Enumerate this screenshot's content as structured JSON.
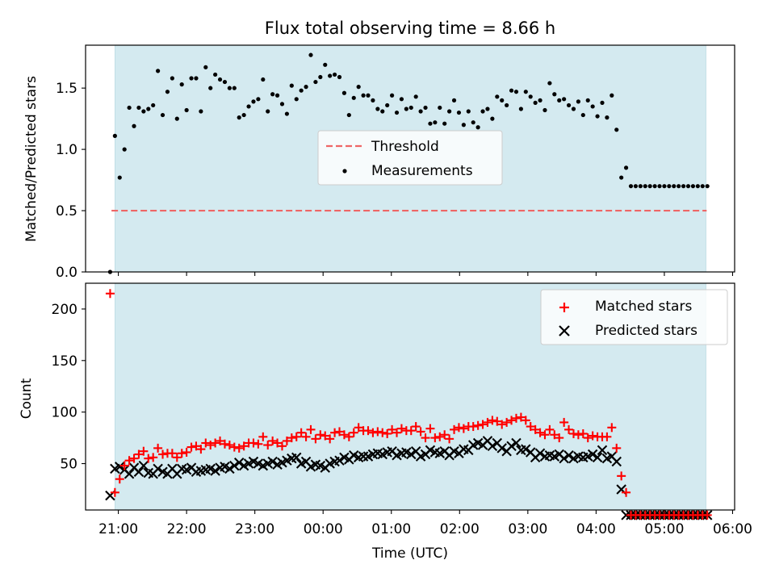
{
  "chart_data": {
    "title": "Flux total observing time = 8.66 h",
    "x_tick_labels": [
      "21:00",
      "22:00",
      "23:00",
      "00:00",
      "01:00",
      "02:00",
      "03:00",
      "04:00",
      "05:00",
      "06:00"
    ],
    "x_ticks_hours": [
      21,
      22,
      23,
      24,
      25,
      26,
      27,
      28,
      29,
      30
    ],
    "xlabel": "Time (UTC)",
    "xlim_hours": [
      20.52,
      30.03
    ],
    "observing_window_hours": [
      20.95,
      29.61
    ],
    "colors": {
      "window": "#d4eaf0",
      "threshold": "#ee6666",
      "matched": "#ff0000",
      "predicted": "#000000",
      "measurements": "#000000"
    },
    "panels": [
      {
        "type": "scatter",
        "ylabel": "Matched/Predicted stars",
        "ylim": [
          0,
          1.85
        ],
        "y_ticks": [
          0,
          0.5,
          1.0,
          1.5
        ],
        "y_tick_labels": [
          "0.0",
          "0.5",
          "1.0",
          "1.5"
        ],
        "legend_position": "center",
        "legend": {
          "threshold_label": "Threshold",
          "measurements_label": "Measurements"
        },
        "threshold": {
          "value": 0.5,
          "x_start": 20.9,
          "x_end": 29.62
        },
        "ratio_points": {
          "x": [
            20.88,
            20.95,
            21.02,
            21.09,
            21.16,
            21.23,
            21.3,
            21.37,
            21.44,
            21.51,
            21.58,
            21.65,
            21.72,
            21.79,
            21.86,
            21.93,
            22.0,
            22.07,
            22.14,
            22.21,
            22.28,
            22.35,
            22.42,
            22.49,
            22.56,
            22.63,
            22.7,
            22.77,
            22.84,
            22.91,
            22.98,
            23.05,
            23.12,
            23.19,
            23.26,
            23.33,
            23.4,
            23.47,
            23.54,
            23.61,
            23.68,
            23.75,
            23.82,
            23.89,
            23.96,
            24.03,
            24.1,
            24.17,
            24.24,
            24.31,
            24.38,
            24.45,
            24.52,
            24.59,
            24.66,
            24.73,
            24.8,
            24.87,
            24.94,
            25.01,
            25.08,
            25.15,
            25.22,
            25.29,
            25.36,
            25.43,
            25.5,
            25.57,
            25.64,
            25.71,
            25.78,
            25.85,
            25.92,
            25.99,
            26.06,
            26.13,
            26.2,
            26.27,
            26.34,
            26.41,
            26.48,
            26.55,
            26.62,
            26.69,
            26.76,
            26.83,
            26.9,
            26.97,
            27.04,
            27.11,
            27.18,
            27.25,
            27.32,
            27.39,
            27.46,
            27.53,
            27.6,
            27.67,
            27.74,
            27.81,
            27.88,
            27.95,
            28.02,
            28.09,
            28.16,
            28.23,
            28.3,
            28.37,
            28.44,
            28.51,
            28.58,
            28.65,
            28.72,
            28.79,
            28.86,
            28.93,
            29.0,
            29.07,
            29.14,
            29.21,
            29.28,
            29.35,
            29.42,
            29.49,
            29.56,
            29.63
          ],
          "y": [
            0.0,
            1.11,
            0.77,
            1.0,
            1.34,
            1.19,
            1.34,
            1.31,
            1.33,
            1.36,
            1.64,
            1.28,
            1.47,
            1.58,
            1.25,
            1.53,
            1.32,
            1.58,
            1.58,
            1.31,
            1.67,
            1.5,
            1.61,
            1.57,
            1.55,
            1.5,
            1.5,
            1.26,
            1.28,
            1.35,
            1.39,
            1.41,
            1.57,
            1.31,
            1.45,
            1.44,
            1.37,
            1.29,
            1.52,
            1.41,
            1.48,
            1.51,
            1.77,
            1.55,
            1.59,
            1.69,
            1.6,
            1.61,
            1.59,
            1.46,
            1.28,
            1.42,
            1.51,
            1.44,
            1.44,
            1.4,
            1.33,
            1.31,
            1.36,
            1.44,
            1.3,
            1.41,
            1.33,
            1.34,
            1.43,
            1.31,
            1.34,
            1.21,
            1.22,
            1.34,
            1.21,
            1.31,
            1.4,
            1.3,
            1.2,
            1.31,
            1.22,
            1.18,
            1.31,
            1.33,
            1.25,
            1.43,
            1.4,
            1.36,
            1.48,
            1.47,
            1.33,
            1.47,
            1.43,
            1.38,
            1.4,
            1.32,
            1.54,
            1.45,
            1.4,
            1.41,
            1.36,
            1.33,
            1.39,
            1.28,
            1.4,
            1.35,
            1.27,
            1.38,
            1.26,
            1.44,
            1.16,
            0.77,
            0.85,
            0.7,
            0.7,
            0.7,
            0.7,
            0.7,
            0.7,
            0.7,
            0.7,
            0.7,
            0.7,
            0.7,
            0.7,
            0.7,
            0.7,
            0.7,
            0.7,
            0.7
          ]
        }
      },
      {
        "type": "scatter",
        "ylabel": "Count",
        "ylim": [
          5,
          225
        ],
        "y_ticks": [
          50,
          100,
          150,
          200
        ],
        "y_tick_labels": [
          "50",
          "100",
          "150",
          "200"
        ],
        "legend_position": "top-right",
        "legend": {
          "matched_label": "Matched stars",
          "predicted_label": "Predicted stars"
        },
        "matched": {
          "x": [
            20.88,
            20.95,
            21.02,
            21.09,
            21.16,
            21.23,
            21.3,
            21.37,
            21.44,
            21.51,
            21.58,
            21.65,
            21.72,
            21.79,
            21.86,
            21.93,
            22.0,
            22.07,
            22.14,
            22.21,
            22.28,
            22.35,
            22.42,
            22.49,
            22.56,
            22.63,
            22.7,
            22.77,
            22.84,
            22.91,
            22.98,
            23.05,
            23.12,
            23.19,
            23.26,
            23.33,
            23.4,
            23.47,
            23.54,
            23.61,
            23.68,
            23.75,
            23.82,
            23.89,
            23.96,
            24.03,
            24.1,
            24.17,
            24.24,
            24.31,
            24.38,
            24.45,
            24.52,
            24.59,
            24.66,
            24.73,
            24.8,
            24.87,
            24.94,
            25.01,
            25.08,
            25.15,
            25.22,
            25.29,
            25.36,
            25.43,
            25.5,
            25.57,
            25.64,
            25.71,
            25.78,
            25.85,
            25.92,
            25.99,
            26.06,
            26.13,
            26.2,
            26.27,
            26.34,
            26.41,
            26.48,
            26.55,
            26.62,
            26.69,
            26.76,
            26.83,
            26.9,
            26.97,
            27.04,
            27.11,
            27.18,
            27.25,
            27.32,
            27.39,
            27.46,
            27.53,
            27.6,
            27.67,
            27.74,
            27.81,
            27.88,
            27.95,
            28.02,
            28.09,
            28.16,
            28.23,
            28.3,
            28.37,
            28.44,
            28.51,
            28.58,
            28.65,
            28.72,
            28.79,
            28.86,
            28.93,
            29.0,
            29.07,
            29.14,
            29.21,
            29.28,
            29.35,
            29.42,
            29.49,
            29.56,
            29.63
          ],
          "y": [
            215,
            22,
            35,
            48,
            53,
            55,
            59,
            62,
            55,
            56,
            65,
            59,
            60,
            60,
            56,
            60,
            61,
            66,
            67,
            64,
            70,
            68,
            70,
            72,
            69,
            68,
            66,
            65,
            67,
            70,
            70,
            69,
            76,
            68,
            72,
            70,
            67,
            72,
            75,
            76,
            80,
            76,
            83,
            74,
            78,
            77,
            74,
            80,
            81,
            78,
            76,
            80,
            85,
            82,
            82,
            80,
            81,
            80,
            79,
            83,
            80,
            84,
            82,
            82,
            86,
            81,
            75,
            84,
            75,
            76,
            78,
            74,
            83,
            85,
            84,
            86,
            86,
            87,
            88,
            90,
            92,
            91,
            88,
            90,
            92,
            94,
            95,
            92,
            86,
            83,
            80,
            78,
            83,
            78,
            75,
            90,
            83,
            79,
            78,
            79,
            75,
            77,
            76,
            76,
            76,
            85,
            65,
            38,
            22,
            0,
            0,
            0,
            0,
            0,
            0,
            0,
            0,
            0,
            0,
            0,
            0,
            0,
            0,
            0,
            0,
            0
          ]
        },
        "predicted": {
          "x": [
            20.88,
            20.95,
            21.02,
            21.09,
            21.16,
            21.23,
            21.3,
            21.37,
            21.44,
            21.51,
            21.58,
            21.65,
            21.72,
            21.79,
            21.86,
            21.93,
            22.0,
            22.07,
            22.14,
            22.21,
            22.28,
            22.35,
            22.42,
            22.49,
            22.56,
            22.63,
            22.7,
            22.77,
            22.84,
            22.91,
            22.98,
            23.05,
            23.12,
            23.19,
            23.26,
            23.33,
            23.4,
            23.47,
            23.54,
            23.61,
            23.68,
            23.75,
            23.82,
            23.89,
            23.96,
            24.03,
            24.1,
            24.17,
            24.24,
            24.31,
            24.38,
            24.45,
            24.52,
            24.59,
            24.66,
            24.73,
            24.8,
            24.87,
            24.94,
            25.01,
            25.08,
            25.15,
            25.22,
            25.29,
            25.36,
            25.43,
            25.5,
            25.57,
            25.64,
            25.71,
            25.78,
            25.85,
            25.92,
            25.99,
            26.06,
            26.13,
            26.2,
            26.27,
            26.34,
            26.41,
            26.48,
            26.55,
            26.62,
            26.69,
            26.76,
            26.83,
            26.9,
            26.97,
            27.04,
            27.11,
            27.18,
            27.25,
            27.32,
            27.39,
            27.46,
            27.53,
            27.6,
            27.67,
            27.74,
            27.81,
            27.88,
            27.95,
            28.02,
            28.09,
            28.16,
            28.23,
            28.3,
            28.37,
            28.44,
            28.51,
            28.58,
            28.65,
            28.72,
            28.79,
            28.86,
            28.93,
            29.0,
            29.07,
            29.14,
            29.21,
            29.28,
            29.35,
            29.42,
            29.49,
            29.56,
            29.63
          ],
          "y": [
            19,
            45,
            47,
            44,
            40,
            46,
            42,
            48,
            41,
            40,
            45,
            42,
            40,
            45,
            40,
            45,
            44,
            46,
            42,
            43,
            44,
            45,
            43,
            46,
            47,
            45,
            48,
            51,
            48,
            50,
            52,
            50,
            48,
            50,
            52,
            49,
            51,
            53,
            55,
            56,
            50,
            52,
            47,
            49,
            48,
            46,
            50,
            52,
            53,
            56,
            54,
            58,
            56,
            57,
            57,
            59,
            60,
            59,
            61,
            62,
            58,
            60,
            61,
            59,
            62,
            57,
            59,
            63,
            61,
            60,
            62,
            58,
            62,
            60,
            64,
            63,
            68,
            70,
            68,
            72,
            67,
            70,
            65,
            62,
            67,
            70,
            63,
            64,
            61,
            56,
            60,
            57,
            58,
            57,
            59,
            55,
            58,
            55,
            57,
            56,
            57,
            59,
            56,
            63,
            55,
            57,
            52,
            25,
            0,
            0,
            0,
            0,
            0,
            0,
            0,
            0,
            0,
            0,
            0,
            0,
            0,
            0,
            0,
            0,
            0,
            0
          ]
        }
      }
    ]
  }
}
